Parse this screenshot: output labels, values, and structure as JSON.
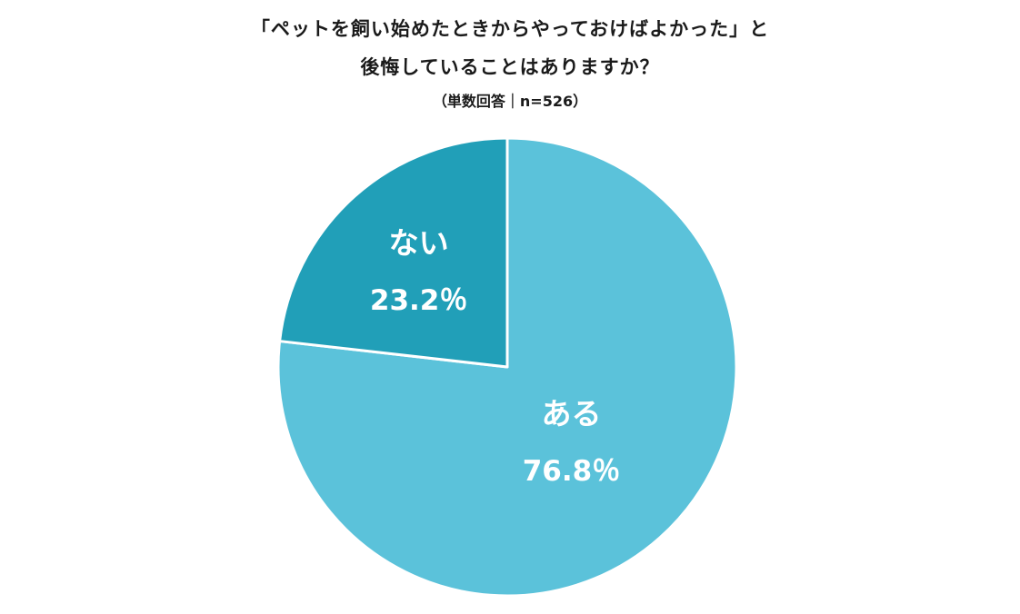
{
  "header": {
    "title_line1": "「ペットを飼い始めたときからやっておけばよかった」と",
    "title_line2": "後悔していることはありますか？",
    "subtitle": "（単数回答｜n=526）"
  },
  "chart_data": {
    "type": "pie",
    "title": "「ペットを飼い始めたときからやっておけばよかった」と後悔していることはありますか？",
    "subtitle": "（単数回答｜n=526）",
    "slices": [
      {
        "label": "ある",
        "value": 76.8,
        "value_label": "76.8％",
        "color": "#5bc2da"
      },
      {
        "label": "ない",
        "value": 23.2,
        "value_label": "23.2％",
        "color": "#219fb8"
      }
    ],
    "start": "12 o'clock",
    "direction": "clockwise",
    "legend": "none"
  }
}
